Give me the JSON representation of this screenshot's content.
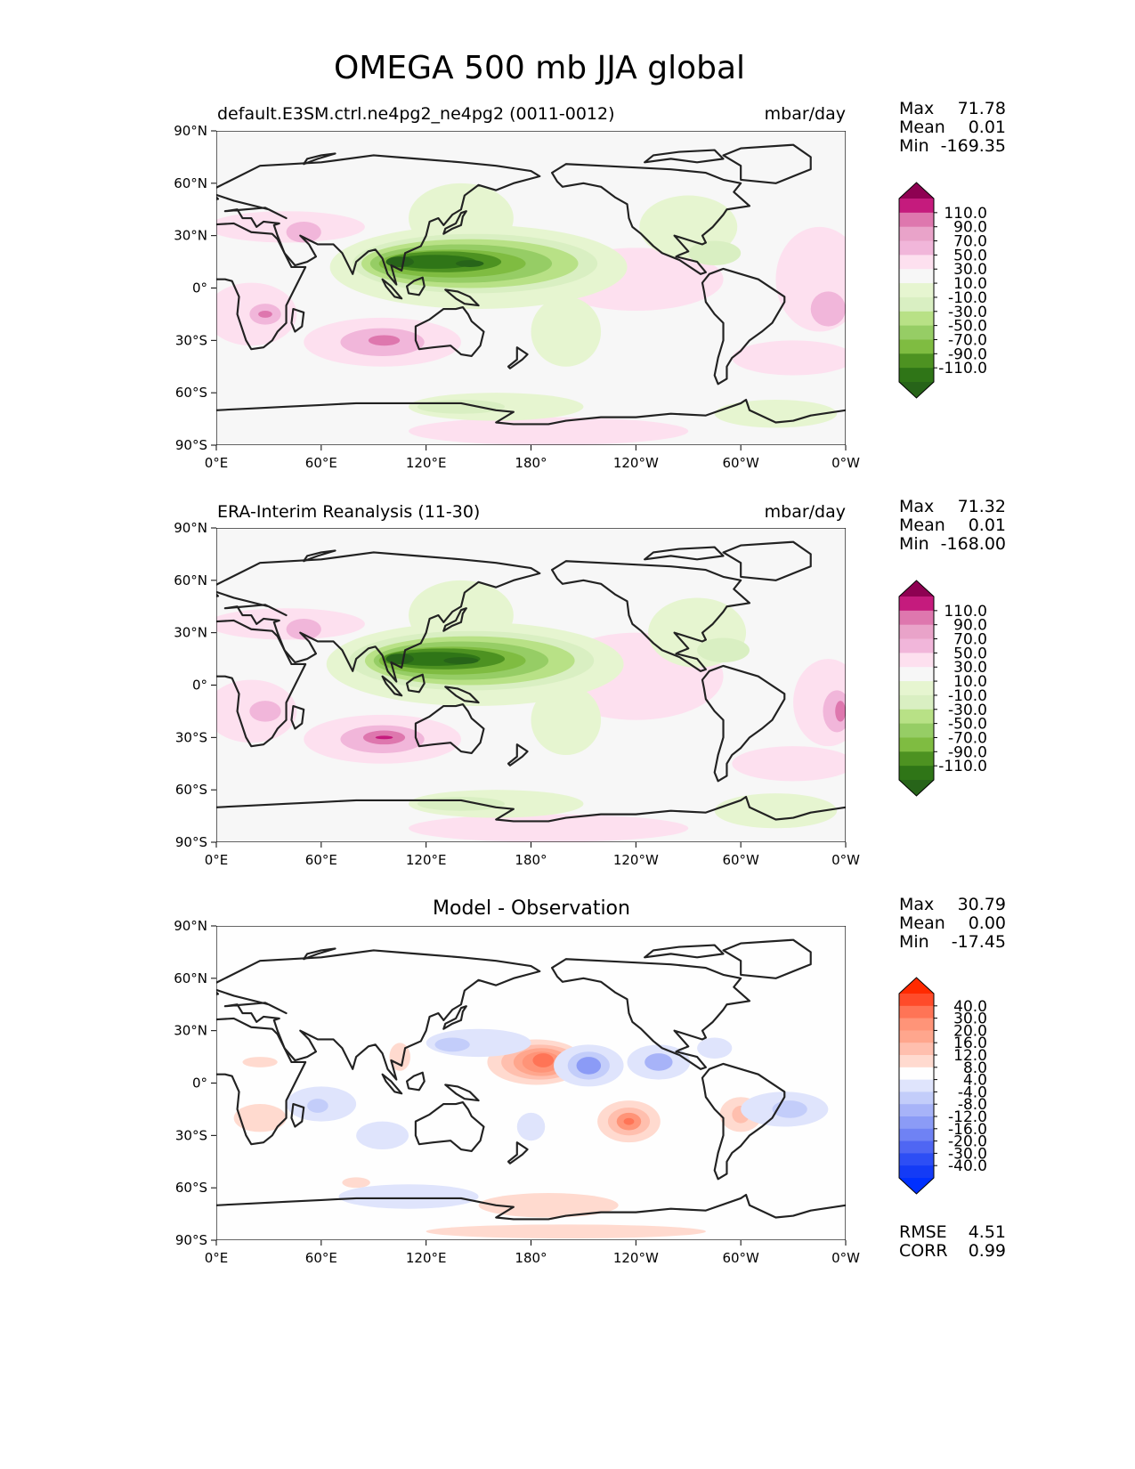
{
  "figure_title": "OMEGA 500 mb JJA global",
  "chart_data": [
    {
      "type": "heatmap",
      "panel_title": "default.E3SM.ctrl.ne4pg2_ne4pg2 (0011-0012)",
      "units": "mbar/day",
      "x_tick_labels": [
        "0°E",
        "60°E",
        "120°E",
        "180°",
        "120°W",
        "60°W",
        "0°W"
      ],
      "y_tick_labels": [
        "90°N",
        "60°N",
        "30°N",
        "0°",
        "30°S",
        "60°S",
        "90°S"
      ],
      "xlim": [
        0,
        360
      ],
      "ylim": [
        -90,
        90
      ],
      "stats": [
        {
          "label": "Max",
          "value": "71.78"
        },
        {
          "label": "Mean",
          "value": "0.01"
        },
        {
          "label": "Min",
          "value": "-169.35"
        }
      ],
      "colorbar": {
        "labels": [
          "110.0",
          "90.0",
          "70.0",
          "50.0",
          "30.0",
          "10.0",
          "-10.0",
          "-30.0",
          "-50.0",
          "-70.0",
          "-90.0",
          "-110.0"
        ],
        "colors": [
          "#c51b7d",
          "#de77ae",
          "#e9a3c9",
          "#f1b6da",
          "#fde0ef",
          "#f7f7f7",
          "#e6f5d0",
          "#d9efc2",
          "#b8e186",
          "#96cd65",
          "#7fbc41",
          "#4d9221",
          "#2f7517"
        ],
        "over_color": "#8e0152",
        "under_color": "#276419"
      },
      "features": [
        {
          "lon": 150,
          "lat": 15,
          "value": -150
        },
        {
          "lon": 140,
          "lat": 40,
          "value": -20
        },
        {
          "lon": 260,
          "lat": 35,
          "value": -30
        },
        {
          "lon": 160,
          "lat": -68,
          "value": -30
        },
        {
          "lon": 95,
          "lat": -32,
          "value": 60
        },
        {
          "lon": 15,
          "lat": -15,
          "value": 40
        },
        {
          "lon": 345,
          "lat": 5,
          "value": 30
        }
      ]
    },
    {
      "type": "heatmap",
      "panel_title": "ERA-Interim Reanalysis (11-30)",
      "units": "mbar/day",
      "x_tick_labels": [
        "0°E",
        "60°E",
        "120°E",
        "180°",
        "120°W",
        "60°W",
        "0°W"
      ],
      "y_tick_labels": [
        "90°N",
        "60°N",
        "30°N",
        "0°",
        "30°S",
        "60°S",
        "90°S"
      ],
      "xlim": [
        0,
        360
      ],
      "ylim": [
        -90,
        90
      ],
      "stats": [
        {
          "label": "Max",
          "value": "71.32"
        },
        {
          "label": "Mean",
          "value": "0.01"
        },
        {
          "label": "Min",
          "value": "-168.00"
        }
      ],
      "colorbar": {
        "labels": [
          "110.0",
          "90.0",
          "70.0",
          "50.0",
          "30.0",
          "10.0",
          "-10.0",
          "-30.0",
          "-50.0",
          "-70.0",
          "-90.0",
          "-110.0"
        ],
        "colors": [
          "#c51b7d",
          "#de77ae",
          "#e9a3c9",
          "#f1b6da",
          "#fde0ef",
          "#f7f7f7",
          "#e6f5d0",
          "#d9efc2",
          "#b8e186",
          "#96cd65",
          "#7fbc41",
          "#4d9221",
          "#2f7517"
        ],
        "over_color": "#8e0152",
        "under_color": "#276419"
      },
      "features": [
        {
          "lon": 150,
          "lat": 15,
          "value": -150
        },
        {
          "lon": 140,
          "lat": 40,
          "value": -20
        },
        {
          "lon": 260,
          "lat": 35,
          "value": -30
        },
        {
          "lon": 160,
          "lat": -68,
          "value": -30
        },
        {
          "lon": 95,
          "lat": -32,
          "value": 65
        },
        {
          "lon": 15,
          "lat": -15,
          "value": 40
        },
        {
          "lon": 355,
          "lat": -20,
          "value": 40
        }
      ]
    },
    {
      "type": "heatmap",
      "panel_title": "Model - Observation",
      "units": "",
      "x_tick_labels": [
        "0°E",
        "60°E",
        "120°E",
        "180°",
        "120°W",
        "60°W",
        "0°W"
      ],
      "y_tick_labels": [
        "90°N",
        "60°N",
        "30°N",
        "0°",
        "30°S",
        "60°S",
        "90°S"
      ],
      "xlim": [
        0,
        360
      ],
      "ylim": [
        -90,
        90
      ],
      "stats": [
        {
          "label": "Max",
          "value": "30.79"
        },
        {
          "label": "Mean",
          "value": "0.00"
        },
        {
          "label": "Min",
          "value": "-17.45"
        }
      ],
      "metrics": [
        {
          "label": "RMSE",
          "value": "4.51"
        },
        {
          "label": "CORR",
          "value": "0.99"
        }
      ],
      "colorbar": {
        "labels": [
          "40.0",
          "30.0",
          "20.0",
          "16.0",
          "12.0",
          "8.0",
          "4.0",
          "-4.0",
          "-8.0",
          "-12.0",
          "-16.0",
          "-20.0",
          "-30.0",
          "-40.0"
        ],
        "colors": [
          "#ff4b2a",
          "#ff7456",
          "#ff9478",
          "#ffa68d",
          "#ffbfae",
          "#ffdacf",
          "#fefefe",
          "#dfe4fc",
          "#c3cdfa",
          "#a7b3f8",
          "#8b9bf6",
          "#6f82f4",
          "#4f66f3",
          "#2d4ef5",
          "#143bf6"
        ],
        "over_color": "#ff2a00",
        "under_color": "#0030ff"
      },
      "features": [
        {
          "lon": 183,
          "lat": 12,
          "value": 28
        },
        {
          "lon": 235,
          "lat": -22,
          "value": 22
        },
        {
          "lon": 213,
          "lat": 10,
          "value": -15
        },
        {
          "lon": 253,
          "lat": 12,
          "value": -12
        },
        {
          "lon": 300,
          "lat": -18,
          "value": 12
        },
        {
          "lon": 330,
          "lat": -18,
          "value": -10
        },
        {
          "lon": 55,
          "lat": -12,
          "value": -8
        }
      ]
    }
  ]
}
